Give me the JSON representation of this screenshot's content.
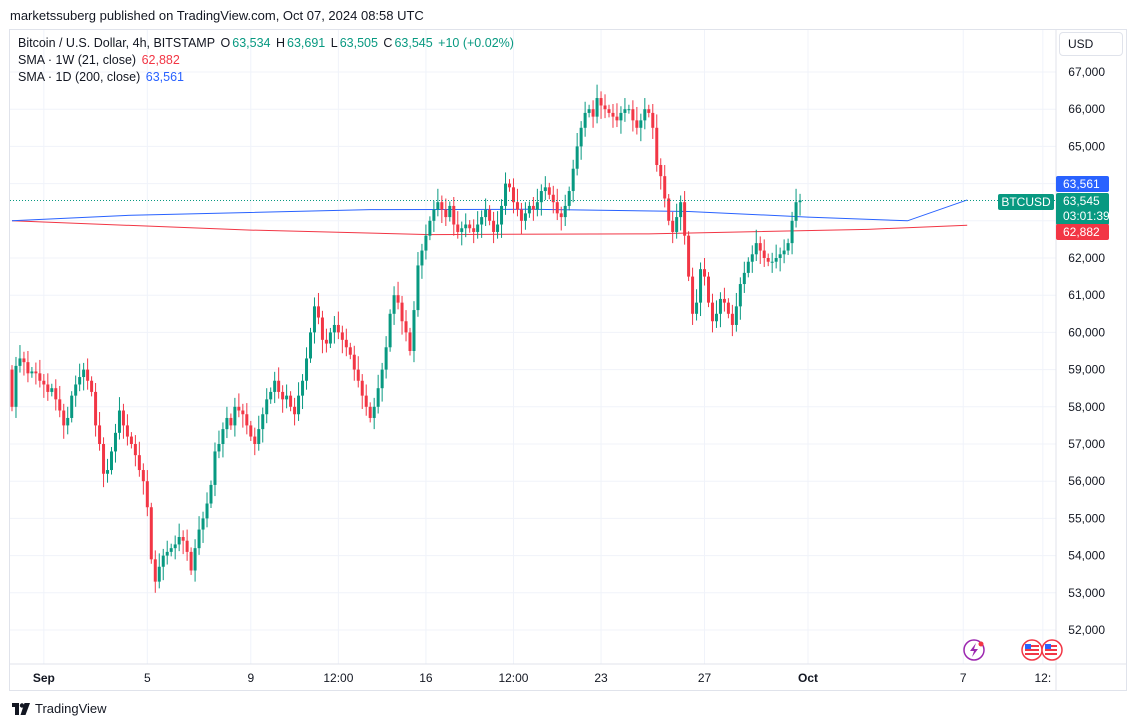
{
  "header": {
    "published_text": "marketssuberg published on TradingView.com, Oct 07, 2024 08:58 UTC"
  },
  "legend": {
    "title": "Bitcoin / U.S. Dollar, 4h, BITSTAMP",
    "open_label": "O",
    "open": "63,534",
    "high_label": "H",
    "high": "63,691",
    "low_label": "L",
    "low": "63,505",
    "close_label": "C",
    "close": "63,545",
    "change": "+10 (+0.02%)",
    "sma1_label": "SMA · 1W (21, close)",
    "sma1_value": "62,882",
    "sma2_label": "SMA · 1D (200, close)",
    "sma2_value": "63,561"
  },
  "toolbar": {
    "currency": "USD"
  },
  "price_tags": {
    "sma2": "63,561",
    "symbol": "BTCUSD",
    "price": "63,545",
    "countdown": "03:01:39",
    "sma1": "62,882"
  },
  "footer": {
    "brand": "TradingView"
  },
  "colors": {
    "up": "#089981",
    "down": "#f23645",
    "sma_1w": "#f23645",
    "sma_1d": "#2962ff",
    "grid": "#f0f3fa"
  },
  "chart_data": {
    "type": "candlestick",
    "symbol": "BTCUSD",
    "timeframe": "4h",
    "ylim": [
      51500,
      67600
    ],
    "y_ticks": [
      52000,
      53000,
      54000,
      55000,
      56000,
      57000,
      58000,
      59000,
      60000,
      61000,
      62000,
      63000,
      64000,
      65000,
      66000,
      67000
    ],
    "y_tick_labels": [
      "52,000",
      "53,000",
      "54,000",
      "55,000",
      "56,000",
      "57,000",
      "58,000",
      "59,000",
      "60,000",
      "61,000",
      "62,000",
      "63,000",
      "64,000",
      "65,000",
      "66,000",
      "67,000"
    ],
    "x_ticks": [
      "Sep",
      "5",
      "9",
      "12:00",
      "16",
      "12:00",
      "23",
      "27",
      "Oct",
      "7",
      "12:"
    ],
    "x_tick_bar_index": [
      8,
      34,
      60,
      82,
      104,
      126,
      148,
      174,
      200,
      239,
      259
    ],
    "grid": true,
    "closes": [
      58000,
      59100,
      59300,
      59200,
      58900,
      58950,
      58900,
      58700,
      58600,
      58400,
      58500,
      58200,
      57900,
      57500,
      57700,
      58300,
      58600,
      58800,
      59000,
      58700,
      58400,
      57500,
      57000,
      56200,
      56300,
      56800,
      57300,
      57900,
      57500,
      57200,
      57000,
      56700,
      56300,
      56000,
      55300,
      53900,
      53300,
      53700,
      54000,
      54100,
      54200,
      54300,
      54500,
      54400,
      54100,
      53600,
      54200,
      54700,
      55000,
      55400,
      55900,
      56800,
      57000,
      57400,
      57700,
      57500,
      58000,
      57900,
      57800,
      57500,
      57200,
      57000,
      57400,
      57800,
      58200,
      58400,
      58700,
      58400,
      58200,
      58300,
      58000,
      57800,
      58300,
      58700,
      59300,
      60000,
      60700,
      60400,
      59800,
      59700,
      60000,
      60200,
      60000,
      59800,
      59600,
      59400,
      59000,
      58700,
      58300,
      58000,
      57700,
      58000,
      58500,
      59000,
      59600,
      60500,
      61000,
      60800,
      60300,
      60000,
      59500,
      60600,
      61800,
      62200,
      62600,
      63000,
      63300,
      63500,
      63300,
      63100,
      63400,
      62900,
      62700,
      62800,
      62900,
      62800,
      62700,
      62900,
      63100,
      63300,
      63000,
      62700,
      62900,
      63400,
      64000,
      63900,
      63500,
      63300,
      63000,
      63200,
      63400,
      63300,
      63500,
      63800,
      63900,
      63700,
      63500,
      63200,
      63100,
      63400,
      63800,
      64400,
      65000,
      65500,
      65900,
      66000,
      65800,
      66300,
      66100,
      66000,
      65900,
      65800,
      65700,
      65900,
      66000,
      66000,
      65700,
      65500,
      65700,
      66000,
      65900,
      65500,
      64500,
      64200,
      63600,
      63000,
      62700,
      63100,
      63500,
      62600,
      61500,
      60500,
      60800,
      61700,
      61500,
      60800,
      60300,
      60500,
      60900,
      60800,
      60500,
      60200,
      60700,
      61300,
      61600,
      61900,
      62100,
      62400,
      62200,
      62000,
      61900,
      61900,
      62000,
      62100,
      62200,
      62400,
      63000,
      63500,
      63545
    ],
    "opens_follow_previous_close": true,
    "sma_1w_21": {
      "name": "SMA · 1W (21, close)",
      "points": [
        [
          0,
          63000
        ],
        [
          60,
          62750
        ],
        [
          105,
          62630
        ],
        [
          160,
          62650
        ],
        [
          215,
          62770
        ],
        [
          240,
          62882
        ]
      ]
    },
    "sma_1d_200": {
      "name": "SMA · 1D (200, close)",
      "points": [
        [
          0,
          63000
        ],
        [
          30,
          63150
        ],
        [
          90,
          63300
        ],
        [
          130,
          63310
        ],
        [
          170,
          63250
        ],
        [
          200,
          63100
        ],
        [
          225,
          63000
        ],
        [
          240,
          63561
        ]
      ]
    },
    "last_price": 63545,
    "price_line": 63545
  }
}
